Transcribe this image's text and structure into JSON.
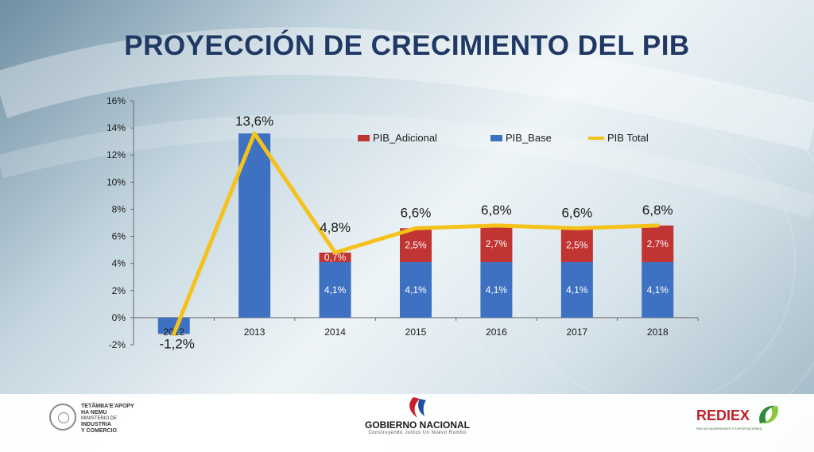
{
  "title": "PROYECCIÓN DE CRECIMIENTO DEL PIB",
  "chart_data": {
    "type": "bar",
    "stacked": true,
    "categories": [
      "2012",
      "2013",
      "2014",
      "2015",
      "2016",
      "2017",
      "2018"
    ],
    "series": [
      {
        "name": "PIB_Base",
        "kind": "bar",
        "color": "#3f71c2",
        "values": [
          -1.2,
          13.6,
          4.1,
          4.1,
          4.1,
          4.1,
          4.1
        ],
        "labels": [
          "",
          "",
          "4,1%",
          "4,1%",
          "4,1%",
          "4,1%",
          "4,1%"
        ]
      },
      {
        "name": "PIB_Adicional",
        "kind": "bar",
        "color": "#c03432",
        "values": [
          0,
          0,
          0.7,
          2.5,
          2.7,
          2.5,
          2.7
        ],
        "labels": [
          "",
          "",
          "0,7%",
          "2,5%",
          "2,7%",
          "2,5%",
          "2,7%"
        ]
      },
      {
        "name": "PIB Total",
        "kind": "line",
        "color": "#f4c21b",
        "values": [
          -1.2,
          13.6,
          4.8,
          6.6,
          6.8,
          6.6,
          6.8
        ],
        "labels": [
          "-1,2%",
          "13,6%",
          "4,8%",
          "6,6%",
          "6,8%",
          "6,6%",
          "6,8%"
        ]
      }
    ],
    "legend_order": [
      "PIB_Adicional",
      "PIB_Base",
      "PIB Total"
    ],
    "legend_position": "top",
    "y_ticks": [
      "-2%",
      "0%",
      "2%",
      "4%",
      "6%",
      "8%",
      "10%",
      "12%",
      "14%",
      "16%"
    ],
    "ylim": [
      -2,
      16
    ],
    "grid": false
  },
  "footer": {
    "left_logo": {
      "line1": "TETÃMBA'E'APOPY",
      "line2": "HA NEMU",
      "line3": "MINISTERIO DE",
      "line4": "INDUSTRIA",
      "line5": "Y COMERCIO"
    },
    "center_logo": {
      "name": "GOBIERNO NACIONAL",
      "tagline": "Construyendo Juntos Un Nuevo Rumbo"
    },
    "right_logo": {
      "name": "REDIEX",
      "tagline": "RED DE INVERSIONES Y EXPORTACIONES"
    }
  }
}
